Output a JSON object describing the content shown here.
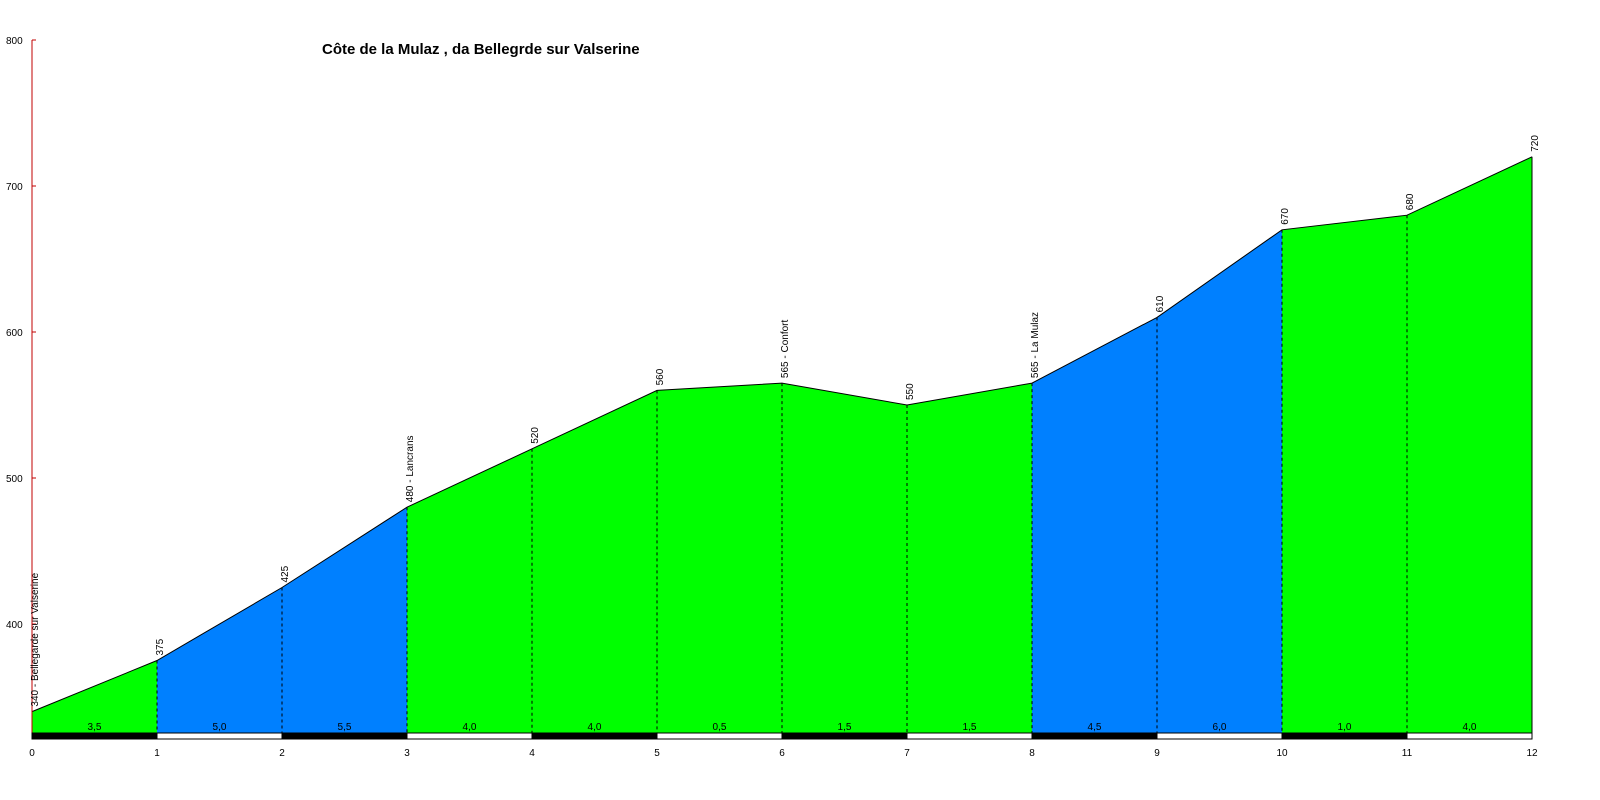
{
  "chart_data": {
    "type": "area",
    "title": "Côte de la Mulaz , da Bellegrde sur Valserine",
    "xlabel": "",
    "ylabel": "",
    "xlim": [
      0,
      12
    ],
    "ylim": [
      322,
      800
    ],
    "x_ticks": [
      "0",
      "1",
      "2",
      "3",
      "4",
      "5",
      "6",
      "7",
      "8",
      "9",
      "10",
      "11",
      "12"
    ],
    "y_ticks": [
      {
        "value": 400,
        "label": "400"
      },
      {
        "value": 500,
        "label": "500"
      },
      {
        "value": 600,
        "label": "600"
      },
      {
        "value": 700,
        "label": "700"
      },
      {
        "value": 800,
        "label": "800"
      }
    ],
    "x": [
      0,
      1,
      2,
      3,
      4,
      5,
      6,
      7,
      8,
      9,
      10,
      11,
      12
    ],
    "elevation": [
      340,
      375,
      425,
      480,
      520,
      560,
      565,
      550,
      565,
      610,
      670,
      680,
      720
    ],
    "point_labels": [
      "340 - Bellegarde sur Valserine",
      "375",
      "425",
      "480 - Lancrans",
      "520",
      "560",
      "565 - Confort",
      "550",
      "565 - La Mulaz",
      "610",
      "670",
      "680",
      "720"
    ],
    "segment_gradients": [
      "3,5",
      "5,0",
      "5,5",
      "4,0",
      "4,0",
      "0,5",
      "1,5",
      "1,5",
      "4,5",
      "6,0",
      "1,0",
      "4,0"
    ],
    "segment_colors": [
      "#00ff00",
      "#0080ff",
      "#0080ff",
      "#00ff00",
      "#00ff00",
      "#00ff00",
      "#00ff00",
      "#00ff00",
      "#0080ff",
      "#0080ff",
      "#00ff00",
      "#00ff00"
    ],
    "grid": false,
    "legend": "none"
  }
}
